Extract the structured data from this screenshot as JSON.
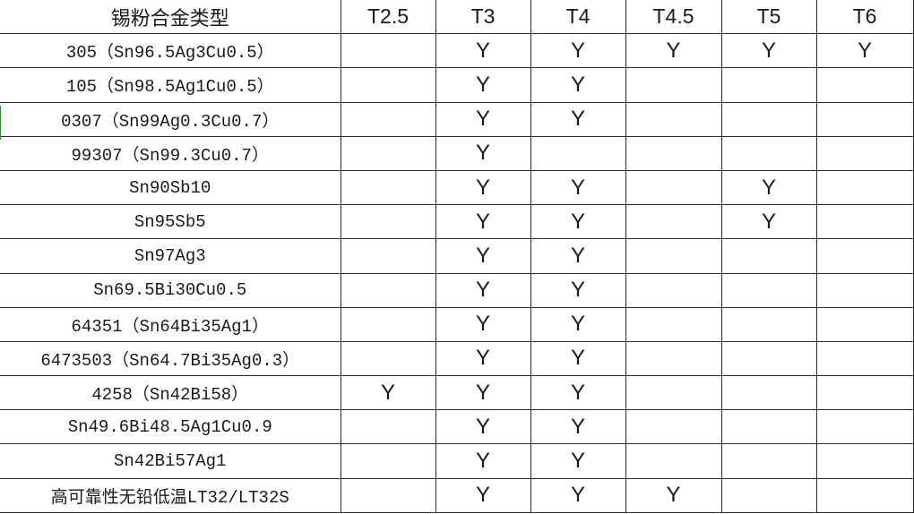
{
  "table": {
    "headers": [
      "锡粉合金类型",
      "T2.5",
      "T3",
      "T4",
      "T4.5",
      "T5",
      "T6"
    ],
    "rows": [
      {
        "name": "305（Sn96.5Ag3Cu0.5）",
        "marks": [
          "",
          "Y",
          "Y",
          "Y",
          "Y",
          "Y"
        ]
      },
      {
        "name": "105（Sn98.5Ag1Cu0.5）",
        "marks": [
          "",
          "Y",
          "Y",
          "",
          "",
          ""
        ]
      },
      {
        "name": "0307（Sn99Ag0.3Cu0.7）",
        "marks": [
          "",
          "Y",
          "Y",
          "",
          "",
          ""
        ]
      },
      {
        "name": "99307（Sn99.3Cu0.7）",
        "marks": [
          "",
          "Y",
          "",
          "",
          "",
          ""
        ]
      },
      {
        "name": "Sn90Sb10",
        "marks": [
          "",
          "Y",
          "Y",
          "",
          "Y",
          ""
        ]
      },
      {
        "name": "Sn95Sb5",
        "marks": [
          "",
          "Y",
          "Y",
          "",
          "Y",
          ""
        ]
      },
      {
        "name": "Sn97Ag3",
        "marks": [
          "",
          "Y",
          "Y",
          "",
          "",
          ""
        ]
      },
      {
        "name": "Sn69.5Bi30Cu0.5",
        "marks": [
          "",
          "Y",
          "Y",
          "",
          "",
          ""
        ]
      },
      {
        "name": "64351（Sn64Bi35Ag1）",
        "marks": [
          "",
          "Y",
          "Y",
          "",
          "",
          ""
        ]
      },
      {
        "name": "6473503（Sn64.7Bi35Ag0.3）",
        "marks": [
          "",
          "Y",
          "Y",
          "",
          "",
          ""
        ]
      },
      {
        "name": "4258（Sn42Bi58）",
        "marks": [
          "Y",
          "Y",
          "Y",
          "",
          "",
          ""
        ]
      },
      {
        "name": "Sn49.6Bi48.5Ag1Cu0.9",
        "marks": [
          "",
          "Y",
          "Y",
          "",
          "",
          ""
        ]
      },
      {
        "name": "Sn42Bi57Ag1",
        "marks": [
          "",
          "Y",
          "Y",
          "",
          "",
          ""
        ]
      },
      {
        "name": "高可靠性无铅低温LT32/LT32S",
        "marks": [
          "",
          "Y",
          "Y",
          "Y",
          "",
          ""
        ]
      }
    ]
  }
}
